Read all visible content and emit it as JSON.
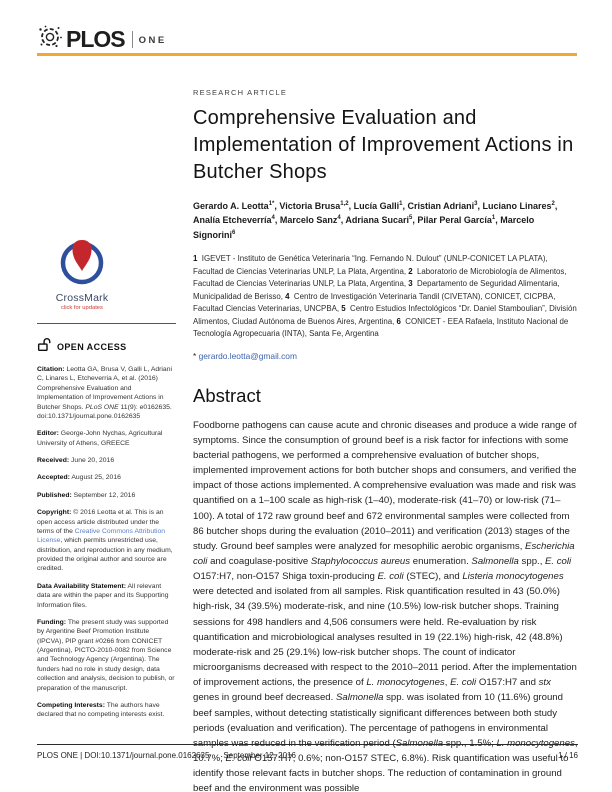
{
  "colors": {
    "accent_yellow": "#F0A830",
    "email_link_blue": "#3C63B0",
    "cc_link_blue": "#5B80C7",
    "crossmark_red": "#C4262E",
    "crossmark_blue": "#2D4F9E"
  },
  "header": {
    "journal_name": "PLOS",
    "journal_edition": "ONE"
  },
  "article": {
    "kicker": "RESEARCH ARTICLE",
    "title": "Comprehensive Evaluation and Implementation of Improvement Actions in Butcher Shops",
    "authors_html": "Gerardo A. Leotta<sup>1*</sup>, Victoria Brusa<sup>1,2</sup>, Lucía Galli<sup>1</sup>, Cristian Adriani<sup>3</sup>, Luciano Linares<sup>2</sup>, Analía Etcheverría<sup>4</sup>, Marcelo Sanz<sup>4</sup>, Adriana Sucari<sup>5</sup>, Pilar Peral García<sup>1</sup>, Marcelo Signorini<sup>6</sup>",
    "affiliations_html": "<b>1</b>&nbsp; IGEVET - Instituto de Genética Veterinaria “Ing. Fernando N. Dulout” (UNLP-CONICET LA PLATA), Facultad de Ciencias Veterinarias UNLP, La Plata, Argentina, <b>2</b>&nbsp; Laboratorio de Microbiología de Alimentos, Facultad de Ciencias Veterinarias UNLP, La Plata, Argentina, <b>3</b>&nbsp; Departamento de Seguridad Alimentaria, Municipalidad de Berisso, <b>4</b>&nbsp; Centro de Investigación Veterinaria Tandil (CIVETAN), CONICET, CICPBA, Facultad Ciencias Veterinarias, UNCPBA, <b>5</b>&nbsp; Centro Estudios Infectológicos “Dr. Daniel Stamboulian”, División Alimentos, Ciudad Autónoma de Buenos Aires, Argentina, <b>6</b>&nbsp; CONICET - EEA Rafaela, Instituto Nacional de Tecnología Agropecuaria (INTA), Santa Fe, Argentina",
    "correspondence_marker": "*",
    "correspondence_email": "gerardo.leotta@gmail.com"
  },
  "abstract": {
    "heading": "Abstract",
    "body_html": "Foodborne pathogens can cause acute and chronic diseases and produce a wide range of symptoms. Since the consumption of ground beef is a risk factor for infections with some bacterial pathogens, we performed a comprehensive evaluation of butcher shops, implemented improvement actions for both butcher shops and consumers, and verified the impact of those actions implemented. A comprehensive evaluation was made and risk was quantified on a 1–100 scale as high-risk (1–40), moderate-risk (41–70) or low-risk (71–100). A total of 172 raw ground beef and 672 environmental samples were collected from 86 butcher shops during the evaluation (2010–2011) and verification (2013) stages of the study. Ground beef samples were analyzed for mesophilic aerobic organisms, <i>Escherichia coli</i> and coagulase-positive <i>Staphylococcus aureus</i> enumeration. <i>Salmonella</i> spp., <i>E. coli</i> O157:H7, non-O157 Shiga toxin-producing <i>E. coli</i> (STEC), and <i>Listeria monocytogenes</i> were detected and isolated from all samples. Risk quantification resulted in 43 (50.0%) high-risk, 34 (39.5%) moderate-risk, and nine (10.5%) low-risk butcher shops. Training sessions for 498 handlers and 4,506 consumers were held. Re-evaluation by risk quantification and microbiological analyses resulted in 19 (22.1%) high-risk, 42 (48.8%) moderate-risk and 25 (29.1%) low-risk butcher shops. The count of indicator microorganisms decreased with respect to the 2010–2011 period. After the implementation of improvement actions, the presence of <i>L. monocytogenes</i>, <i>E. coli</i> O157:H7 and <i>stx</i> genes in ground beef decreased. <i>Salmonella</i> spp. was isolated from 10 (11.6%) ground beef samples, without detecting statistically significant differences between both study periods (evaluation and verification). The percentage of pathogens in environmental samples was reduced in the verification period (<i>Salmonella</i> spp., 1.5%; <i>L. monocytogenes</i>, 10.7%; <i>E. coli</i> O157:H7, 0.6%; non-O157 STEC, 6.8%). Risk quantification was useful to identify those relevant facts in butcher shops. The reduction of contamination in ground beef and the environment was possible"
  },
  "sidebar": {
    "crossmark": {
      "name": "CrossMark",
      "tagline": "click for updates"
    },
    "open_access_label": "OPEN ACCESS",
    "citation": {
      "label": "Citation:",
      "body_html": " Leotta GA, Brusa V, Galli L, Adriani C, Linares L, Etcheverria A, et al. (2016) Comprehensive Evaluation and Implementation of Improvement Actions in Butcher Shops. <i>PLoS ONE</i> 11(9): e0162635. doi:10.1371/journal.pone.0162635"
    },
    "editor": {
      "label": "Editor:",
      "text": " George-John Nychas, Agricultural University of Athens, GREECE"
    },
    "received": {
      "label": "Received:",
      "text": " June 20, 2016"
    },
    "accepted": {
      "label": "Accepted:",
      "text": " August 25, 2016"
    },
    "published": {
      "label": "Published:",
      "text": " September 12, 2016"
    },
    "copyright": {
      "label": "Copyright:",
      "before_link": " © 2016 Leotta et al. This is an open access article distributed under the terms of the ",
      "link_text": "Creative Commons Attribution License",
      "after_link": ", which permits unrestricted use, distribution, and reproduction in any medium, provided the original author and source are credited."
    },
    "data_availability": {
      "label": "Data Availability Statement:",
      "text": " All relevant data are within the paper and its Supporting Information files."
    },
    "funding": {
      "label": "Funding:",
      "text": " The present study was supported by Argentine Beef Promotion Institute (IPCVA), PIP grant #0266 from CONICET (Argentina), PICTO-2010-0082 from Science and Technology Agency (Argentina). The funders had no role in study design, data collection and analysis, decision to publish, or preparation of the manuscript."
    },
    "competing": {
      "label": "Competing Interests:",
      "text": " The authors have declared that no competing interests exist."
    }
  },
  "footer": {
    "left": "PLOS ONE | DOI:10.1371/journal.pone.0162635",
    "date": "September 12, 2016",
    "page": "1 / 16"
  }
}
